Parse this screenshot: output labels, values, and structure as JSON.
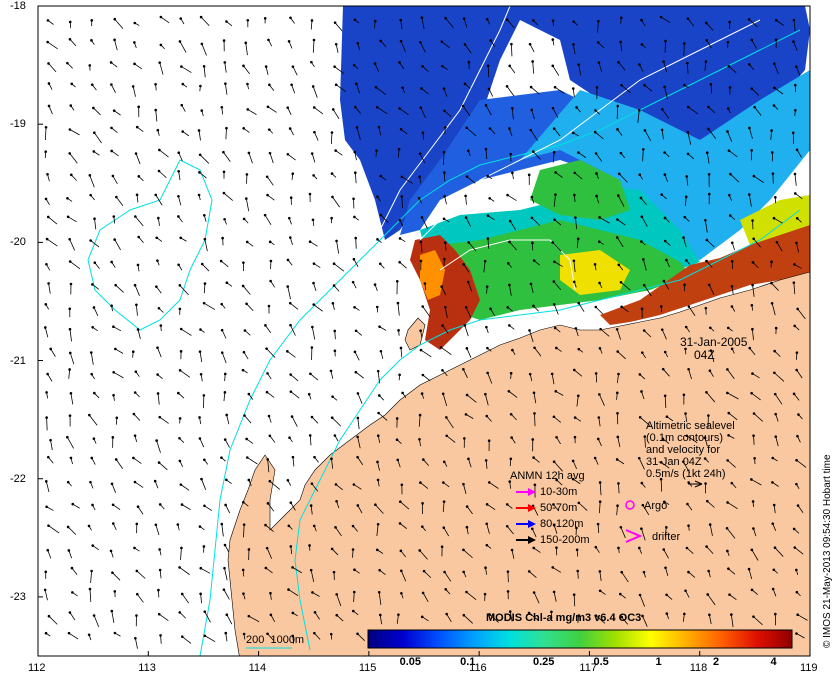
{
  "map": {
    "x_ticks": [
      "112",
      "113",
      "114",
      "115",
      "116",
      "117",
      "118",
      "119"
    ],
    "y_ticks": [
      "-18",
      "-19",
      "-20",
      "-21",
      "-22",
      "-23"
    ],
    "x_range": [
      112,
      119
    ],
    "y_range": [
      -23.5,
      -18
    ],
    "date": "31-Jan-2005",
    "time": "04Z",
    "altimetry_note": "Altimetric sealevel\n(0.1m contours)\nand velocity for\n31-Jan 04Z\n0.5m/s (1kt 24h)",
    "argo_label": "Argo",
    "drifter_label": "drifter",
    "bathymetry_label": "200  1000m",
    "credit": "© IMOS 21-May-2013 09:54:30 Hobart time",
    "colors": {
      "land": "#fac8a0",
      "contour": "#00e0e0",
      "argo": "#ff00ff",
      "drifter": "#ff00ff"
    }
  },
  "anmn": {
    "title": "ANMN 12h avg",
    "items": [
      {
        "label": "10-30m",
        "color": "#ff00ff"
      },
      {
        "label": "50-70m",
        "color": "#ff0000"
      },
      {
        "label": "80-120m",
        "color": "#0000ff"
      },
      {
        "label": "150-200m",
        "color": "#000000"
      }
    ]
  },
  "colorbar": {
    "title": "MODIS Chl-a mg/m3 v6.4 OC3",
    "labels": [
      "0.05",
      "0.1",
      "0.25",
      "0.5",
      "1",
      "2",
      "4"
    ],
    "label_values": [
      0.05,
      0.1,
      0.25,
      0.5,
      1,
      2,
      4
    ],
    "range": [
      0.03,
      5
    ],
    "colors": [
      "#00007f",
      "#0000d0",
      "#0050ff",
      "#00a0ff",
      "#00e0e0",
      "#30e090",
      "#40d040",
      "#a0e000",
      "#ffff00",
      "#ffb000",
      "#ff6000",
      "#e01000",
      "#900000"
    ]
  }
}
